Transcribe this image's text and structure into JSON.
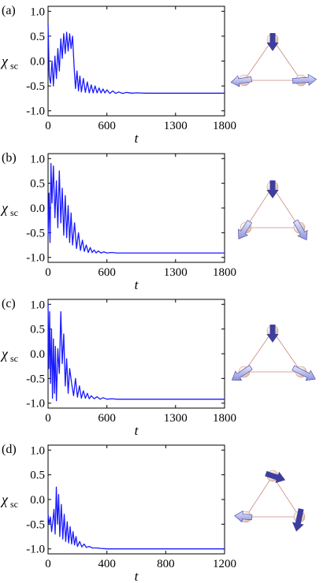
{
  "chart_data": [
    {
      "type": "line",
      "panel_label": "(a)",
      "xlabel": "t",
      "ylabel_main": "χ",
      "ylabel_sub": "sc",
      "xlim": [
        0,
        1800
      ],
      "ylim": [
        -1.1,
        1.1
      ],
      "xticks": [
        0,
        600,
        1300,
        1800
      ],
      "xtick_labels": [
        "0",
        "600",
        "1300",
        "1800"
      ],
      "yticks": [
        1.0,
        0.5,
        0.0,
        -0.5,
        -1.0
      ],
      "ytick_labels": [
        "1.0",
        "0.5",
        "0.0",
        "-0.5",
        "-1.0"
      ],
      "color": "#1a1aff",
      "series": [
        {
          "x": [
            0,
            12,
            25,
            40,
            55,
            70,
            85,
            100,
            115,
            130,
            145,
            160,
            175,
            190,
            205,
            220,
            235,
            250,
            265,
            280,
            295,
            310,
            325,
            340,
            360,
            380,
            400,
            420,
            440,
            460,
            480,
            500,
            520,
            540,
            560,
            580,
            600,
            630,
            660,
            690,
            720,
            760,
            800,
            850,
            900,
            1000,
            1100,
            1300,
            1500,
            1800
          ],
          "y": [
            0.75,
            -0.3,
            -0.45,
            0.0,
            -0.5,
            0.1,
            -0.35,
            0.25,
            -0.2,
            0.45,
            0.05,
            0.55,
            0.15,
            0.58,
            0.2,
            0.55,
            0.25,
            0.5,
            -0.1,
            -0.55,
            -0.2,
            -0.6,
            -0.3,
            -0.62,
            -0.35,
            -0.63,
            -0.42,
            -0.64,
            -0.48,
            -0.64,
            -0.5,
            -0.64,
            -0.54,
            -0.64,
            -0.56,
            -0.64,
            -0.58,
            -0.65,
            -0.6,
            -0.65,
            -0.62,
            -0.65,
            -0.63,
            -0.645,
            -0.64,
            -0.645,
            -0.645,
            -0.645,
            -0.645,
            -0.645
          ]
        }
      ]
    },
    {
      "type": "line",
      "panel_label": "(b)",
      "xlabel": "t",
      "ylabel_main": "χ",
      "ylabel_sub": "sc",
      "xlim": [
        0,
        1800
      ],
      "ylim": [
        -1.1,
        1.1
      ],
      "xticks": [
        0,
        600,
        1300,
        1800
      ],
      "xtick_labels": [
        "0",
        "600",
        "1300",
        "1800"
      ],
      "yticks": [
        1.0,
        0.5,
        0.0,
        -0.5,
        -1.0
      ],
      "ytick_labels": [
        "1.0",
        "0.5",
        "0.0",
        "-0.5",
        "-1.0"
      ],
      "color": "#1a1aff",
      "series": [
        {
          "x": [
            0,
            10,
            20,
            30,
            40,
            55,
            70,
            85,
            100,
            115,
            130,
            145,
            160,
            175,
            190,
            205,
            220,
            235,
            250,
            270,
            290,
            310,
            330,
            350,
            370,
            390,
            410,
            430,
            450,
            470,
            490,
            510,
            540,
            570,
            600,
            650,
            700,
            800,
            1000,
            1300,
            1800
          ],
          "y": [
            -0.6,
            0.3,
            -0.7,
            0.9,
            0.1,
            0.85,
            -0.2,
            0.55,
            -0.4,
            0.75,
            -0.3,
            0.4,
            -0.55,
            0.25,
            -0.6,
            0.05,
            -0.7,
            -0.1,
            -0.75,
            -0.3,
            -0.82,
            -0.5,
            -0.86,
            -0.65,
            -0.88,
            -0.75,
            -0.9,
            -0.8,
            -0.9,
            -0.85,
            -0.91,
            -0.87,
            -0.91,
            -0.89,
            -0.91,
            -0.9,
            -0.91,
            -0.91,
            -0.91,
            -0.91,
            -0.91
          ]
        }
      ]
    },
    {
      "type": "line",
      "panel_label": "(c)",
      "xlabel": "t",
      "ylabel_main": "χ",
      "ylabel_sub": "sc",
      "xlim": [
        0,
        1800
      ],
      "ylim": [
        -1.1,
        1.1
      ],
      "xticks": [
        0,
        600,
        1300,
        1800
      ],
      "xtick_labels": [
        "0",
        "600",
        "1300",
        "1800"
      ],
      "yticks": [
        1.0,
        0.5,
        0.0,
        -0.5,
        -1.0
      ],
      "ytick_labels": [
        "1.0",
        "0.5",
        "0.0",
        "-0.5",
        "-1.0"
      ],
      "color": "#1a1aff",
      "series": [
        {
          "x": [
            0,
            8,
            16,
            25,
            35,
            45,
            55,
            65,
            75,
            85,
            100,
            115,
            130,
            145,
            160,
            175,
            190,
            205,
            220,
            240,
            260,
            280,
            300,
            320,
            340,
            360,
            380,
            400,
            420,
            440,
            470,
            500,
            530,
            560,
            600,
            650,
            700,
            800,
            1000,
            1300,
            1800
          ],
          "y": [
            1.0,
            -0.3,
            0.85,
            -0.6,
            0.5,
            -0.9,
            0.3,
            -0.8,
            0.15,
            -0.95,
            0.1,
            -0.4,
            0.85,
            -0.2,
            0.4,
            -0.65,
            -0.1,
            -0.8,
            -0.3,
            -0.6,
            -0.85,
            -0.5,
            -0.88,
            -0.65,
            -0.9,
            -0.75,
            -0.9,
            -0.8,
            -0.91,
            -0.85,
            -0.91,
            -0.87,
            -0.92,
            -0.89,
            -0.92,
            -0.91,
            -0.92,
            -0.92,
            -0.92,
            -0.92,
            -0.92
          ]
        }
      ]
    },
    {
      "type": "line",
      "panel_label": "(d)",
      "xlabel": "t",
      "ylabel_main": "χ",
      "ylabel_sub": "sc",
      "xlim": [
        0,
        1200
      ],
      "ylim": [
        -1.1,
        1.1
      ],
      "xticks": [
        0,
        400,
        800,
        1200
      ],
      "xtick_labels": [
        "0",
        "400",
        "800",
        "1200"
      ],
      "yticks": [
        1.0,
        0.5,
        0.0,
        -0.5,
        -1.0
      ],
      "ytick_labels": [
        "1.0",
        "0.5",
        "0.0",
        "-0.5",
        "-1.0"
      ],
      "color": "#1a1aff",
      "series": [
        {
          "x": [
            0,
            8,
            16,
            24,
            32,
            40,
            48,
            56,
            64,
            72,
            80,
            90,
            100,
            110,
            120,
            130,
            140,
            150,
            160,
            170,
            180,
            190,
            200,
            215,
            230,
            245,
            260,
            280,
            300,
            330,
            360,
            400,
            500,
            600,
            800,
            1000,
            1200
          ],
          "y": [
            -0.3,
            -0.5,
            -0.35,
            -0.65,
            -0.45,
            -0.2,
            -0.7,
            0.25,
            -0.5,
            0.1,
            -0.75,
            -0.1,
            -0.8,
            -0.3,
            -0.85,
            -0.45,
            -0.88,
            -0.55,
            -0.9,
            -0.65,
            -0.92,
            -0.75,
            -0.95,
            -0.85,
            -0.96,
            -0.9,
            -0.97,
            -0.95,
            -0.98,
            -0.98,
            -0.99,
            -1.0,
            -1.0,
            -1.0,
            -1.0,
            -1.0,
            -1.0
          ]
        }
      ]
    }
  ],
  "spin_colors": {
    "sphere": "#f4e6dd",
    "arrow_light": "#c6c9ef",
    "arrow_dark": "#3e3e9e",
    "edge": "#c98a82"
  }
}
